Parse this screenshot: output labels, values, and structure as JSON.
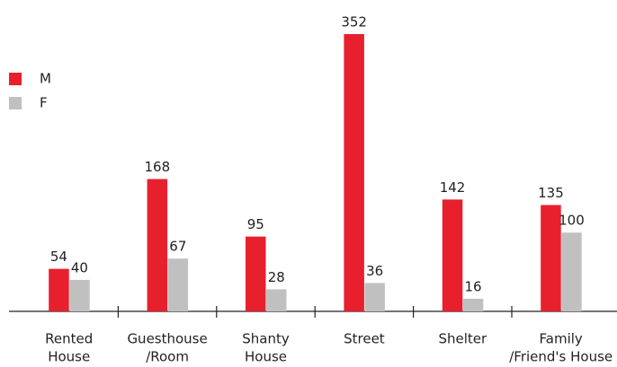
{
  "chart_data": {
    "type": "bar",
    "categories": [
      [
        "Rented",
        "House"
      ],
      [
        "Guesthouse",
        "/Room"
      ],
      [
        "Shanty",
        "House"
      ],
      [
        "Street"
      ],
      [
        "Shelter"
      ],
      [
        "Family",
        "/Friend's House"
      ]
    ],
    "series": [
      {
        "name": "M",
        "color": "#e8202e",
        "values": [
          54,
          168,
          95,
          352,
          142,
          135
        ]
      },
      {
        "name": "F",
        "color": "#c0c0c0",
        "values": [
          40,
          67,
          28,
          36,
          16,
          100
        ]
      }
    ]
  }
}
